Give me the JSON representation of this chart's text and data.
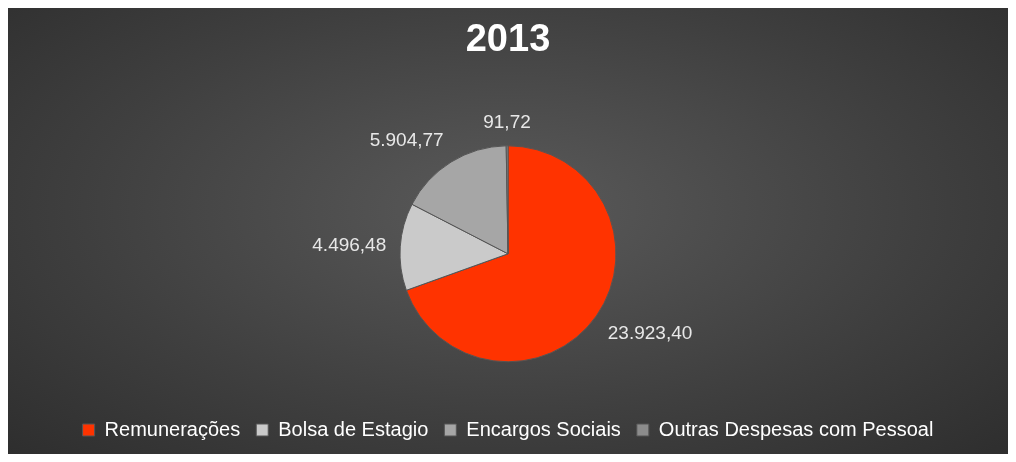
{
  "chart_data": {
    "type": "pie",
    "title": "2013",
    "categories": [
      "Remunerações",
      "Bolsa de Estagio",
      "Encargos Sociais",
      "Outras Despesas com Pessoal"
    ],
    "values": [
      23923.4,
      4496.48,
      5904.77,
      91.72
    ],
    "value_labels": [
      "23.923,40",
      "4.496,48",
      "5.904,77",
      "91,72"
    ],
    "colors": [
      "#ff3300",
      "#cacaca",
      "#a6a6a6",
      "#8c8c8c"
    ],
    "legend": "bottom"
  }
}
